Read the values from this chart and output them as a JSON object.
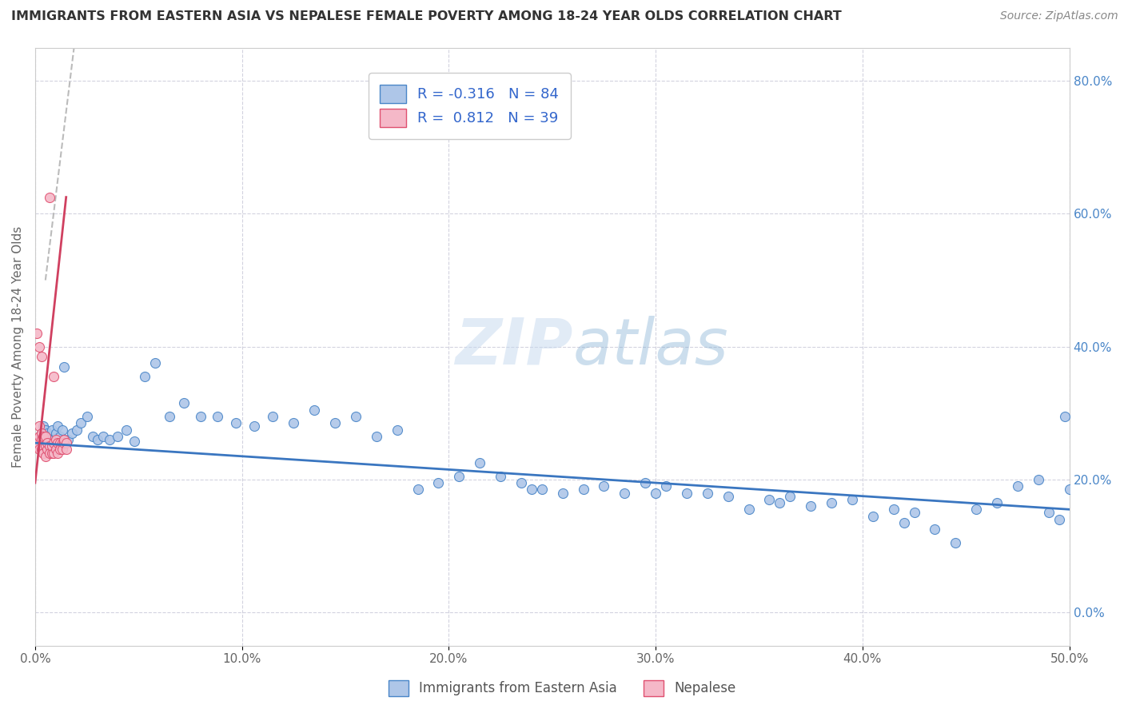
{
  "title": "IMMIGRANTS FROM EASTERN ASIA VS NEPALESE FEMALE POVERTY AMONG 18-24 YEAR OLDS CORRELATION CHART",
  "source": "Source: ZipAtlas.com",
  "ylabel": "Female Poverty Among 18-24 Year Olds",
  "xlim": [
    0.0,
    0.5
  ],
  "ylim": [
    -0.05,
    0.85
  ],
  "xticks": [
    0.0,
    0.1,
    0.2,
    0.3,
    0.4,
    0.5
  ],
  "xticklabels": [
    "0.0%",
    "10.0%",
    "20.0%",
    "30.0%",
    "40.0%",
    "50.0%"
  ],
  "yticks_right": [
    0.0,
    0.2,
    0.4,
    0.6,
    0.8
  ],
  "yticklabels_right": [
    "0.0%",
    "20.0%",
    "40.0%",
    "60.0%",
    "80.0%"
  ],
  "blue_R": -0.316,
  "blue_N": 84,
  "pink_R": 0.812,
  "pink_N": 39,
  "blue_color": "#aec6e8",
  "pink_color": "#f5b8c8",
  "blue_edge_color": "#4a86c8",
  "pink_edge_color": "#e05070",
  "blue_line_color": "#3a76c0",
  "pink_line_color": "#d04060",
  "background_color": "#ffffff",
  "grid_color": "#c8c8d8",
  "legend_label_blue": "Immigrants from Eastern Asia",
  "legend_label_pink": "Nepalese",
  "blue_trend_x0": 0.0,
  "blue_trend_x1": 0.5,
  "blue_trend_y0": 0.255,
  "blue_trend_y1": 0.155,
  "pink_trend_x0": 0.0,
  "pink_trend_x1": 0.015,
  "pink_trend_y0": 0.195,
  "pink_trend_y1": 0.625,
  "blue_x": [
    0.001,
    0.002,
    0.003,
    0.003,
    0.004,
    0.004,
    0.005,
    0.005,
    0.006,
    0.007,
    0.007,
    0.008,
    0.009,
    0.01,
    0.011,
    0.012,
    0.013,
    0.014,
    0.016,
    0.018,
    0.02,
    0.022,
    0.025,
    0.028,
    0.03,
    0.033,
    0.036,
    0.04,
    0.044,
    0.048,
    0.053,
    0.058,
    0.065,
    0.072,
    0.08,
    0.088,
    0.097,
    0.106,
    0.115,
    0.125,
    0.135,
    0.145,
    0.155,
    0.165,
    0.175,
    0.185,
    0.195,
    0.205,
    0.215,
    0.225,
    0.235,
    0.245,
    0.255,
    0.265,
    0.275,
    0.285,
    0.295,
    0.305,
    0.315,
    0.325,
    0.335,
    0.345,
    0.355,
    0.365,
    0.375,
    0.385,
    0.395,
    0.405,
    0.415,
    0.425,
    0.435,
    0.445,
    0.455,
    0.465,
    0.475,
    0.485,
    0.49,
    0.495,
    0.498,
    0.5,
    0.42,
    0.36,
    0.3,
    0.24
  ],
  "blue_y": [
    0.25,
    0.255,
    0.265,
    0.27,
    0.26,
    0.28,
    0.255,
    0.275,
    0.27,
    0.26,
    0.265,
    0.275,
    0.26,
    0.27,
    0.28,
    0.265,
    0.275,
    0.37,
    0.26,
    0.27,
    0.275,
    0.285,
    0.295,
    0.265,
    0.26,
    0.265,
    0.26,
    0.265,
    0.275,
    0.258,
    0.355,
    0.375,
    0.295,
    0.315,
    0.295,
    0.295,
    0.285,
    0.28,
    0.295,
    0.285,
    0.305,
    0.285,
    0.295,
    0.265,
    0.275,
    0.185,
    0.195,
    0.205,
    0.225,
    0.205,
    0.195,
    0.185,
    0.18,
    0.185,
    0.19,
    0.18,
    0.195,
    0.19,
    0.18,
    0.18,
    0.175,
    0.155,
    0.17,
    0.175,
    0.16,
    0.165,
    0.17,
    0.145,
    0.155,
    0.15,
    0.125,
    0.105,
    0.155,
    0.165,
    0.19,
    0.2,
    0.15,
    0.14,
    0.295,
    0.185,
    0.135,
    0.165,
    0.18,
    0.185
  ],
  "pink_x": [
    0.001,
    0.001,
    0.002,
    0.002,
    0.002,
    0.003,
    0.003,
    0.003,
    0.004,
    0.004,
    0.004,
    0.005,
    0.005,
    0.005,
    0.006,
    0.006,
    0.007,
    0.007,
    0.007,
    0.008,
    0.008,
    0.009,
    0.009,
    0.01,
    0.01,
    0.011,
    0.011,
    0.012,
    0.012,
    0.013,
    0.013,
    0.014,
    0.014,
    0.015,
    0.015,
    0.001,
    0.002,
    0.003,
    0.009
  ],
  "pink_y": [
    0.25,
    0.255,
    0.245,
    0.265,
    0.28,
    0.26,
    0.27,
    0.245,
    0.265,
    0.25,
    0.24,
    0.265,
    0.25,
    0.235,
    0.245,
    0.255,
    0.625,
    0.25,
    0.24,
    0.24,
    0.25,
    0.24,
    0.255,
    0.245,
    0.26,
    0.255,
    0.24,
    0.255,
    0.245,
    0.255,
    0.245,
    0.255,
    0.26,
    0.255,
    0.245,
    0.42,
    0.4,
    0.385,
    0.355
  ]
}
